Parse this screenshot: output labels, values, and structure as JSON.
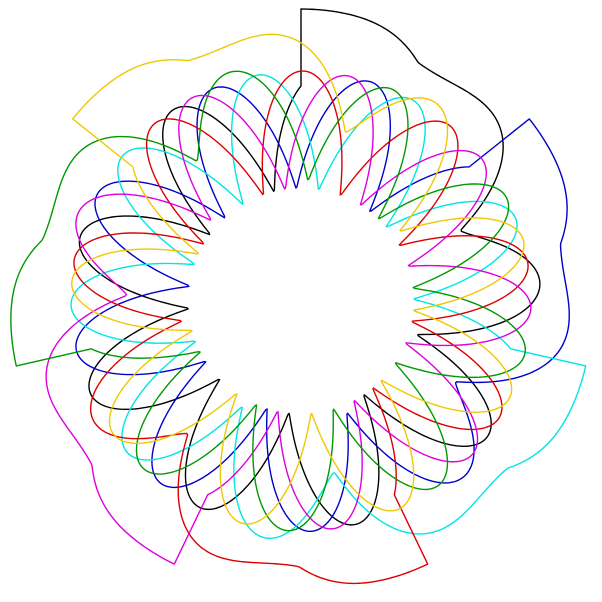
{
  "diagram": {
    "title": "",
    "description_kind": "rotationally symmetric Venn-style closed curves",
    "curve_count": 7,
    "symmetry_order": 7,
    "curves": [
      {
        "name": "black-curve",
        "color": "#000000",
        "rotation_index": 0
      },
      {
        "name": "blue-curve",
        "color": "#0000cc",
        "rotation_index": 1
      },
      {
        "name": "cyan-curve",
        "color": "#00e5e5",
        "rotation_index": 2
      },
      {
        "name": "red-curve",
        "color": "#dd0000",
        "rotation_index": 3
      },
      {
        "name": "magenta-curve",
        "color": "#dd00dd",
        "rotation_index": 4
      },
      {
        "name": "green-curve",
        "color": "#009900",
        "rotation_index": 5
      },
      {
        "name": "yellow-curve",
        "color": "#f0c800",
        "rotation_index": 6
      }
    ]
  }
}
